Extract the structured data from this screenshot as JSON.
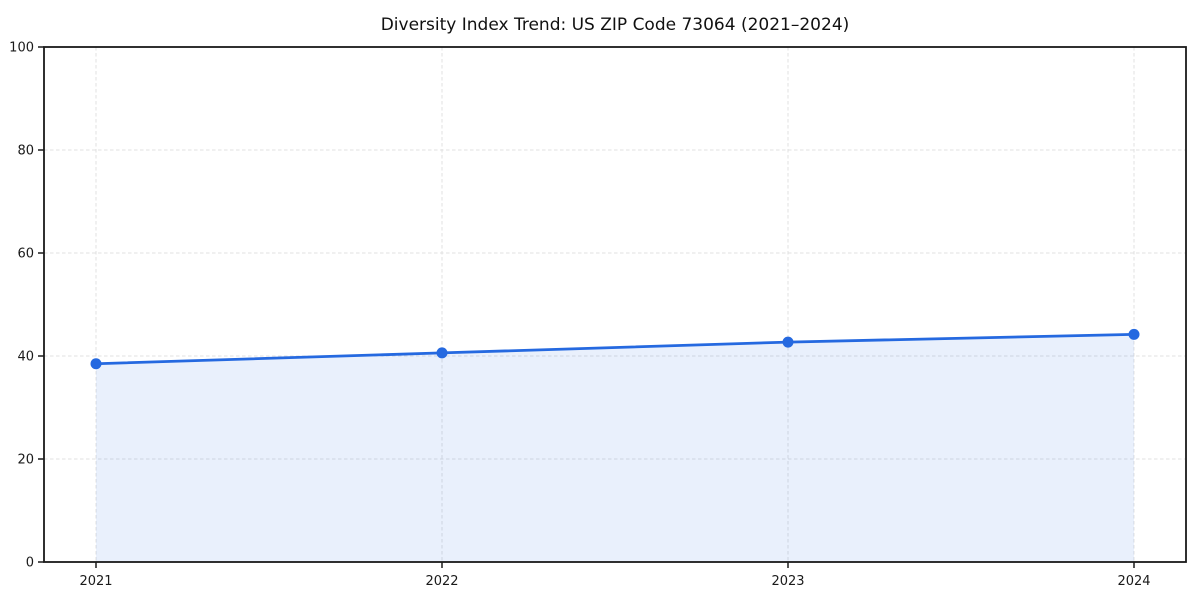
{
  "page": {
    "background": "#ffffff"
  },
  "chart_data": {
    "type": "line",
    "title": "Diversity Index Trend: US ZIP Code 73064 (2021–2024)",
    "xlabel": "",
    "ylabel": "",
    "categories": [
      "2021",
      "2022",
      "2023",
      "2024"
    ],
    "series": [
      {
        "name": "Diversity Index",
        "values": [
          38.5,
          40.6,
          42.7,
          44.2
        ]
      }
    ],
    "ylim": [
      0,
      100
    ],
    "yticks": [
      0,
      20,
      40,
      60,
      80,
      100
    ],
    "grid": true,
    "grid_style": "dashed",
    "legend_position": "none",
    "area_fill": true,
    "marker": "circle",
    "colors": {
      "line": "#2569e0",
      "marker": "#2569e0",
      "fill": "rgba(37, 105, 224, 0.10)",
      "grid": "#e0e0e0",
      "axis": "#1a1a1a",
      "text": "#1a1a1a",
      "title": "#111111"
    }
  }
}
